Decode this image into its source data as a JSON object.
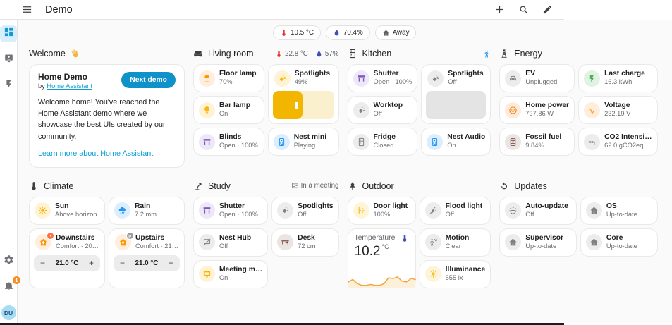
{
  "app": {
    "title": "Demo",
    "menu_icon": "menu",
    "actions": [
      "plus",
      "magnify",
      "pencil"
    ]
  },
  "sidebar": {
    "items": [
      {
        "label": "Dashboards",
        "icon": "view-dashboard",
        "active": true
      },
      {
        "label": "Media",
        "icon": "media",
        "active": false
      },
      {
        "label": "Energy",
        "icon": "flash",
        "active": false
      }
    ],
    "settings_icon": "cog",
    "notifications_icon": "bell",
    "notifications_badge": "1",
    "user": {
      "initials": "DU"
    }
  },
  "chips": [
    {
      "icon": "thermometer",
      "color": "#e53935",
      "label": "10.5 °C"
    },
    {
      "icon": "water",
      "color": "#3f51b5",
      "label": "70.4%"
    },
    {
      "icon": "home",
      "color": "#5f6368",
      "label": "Away"
    }
  ],
  "welcome": {
    "heading": "Welcome",
    "icon": "waving-hand",
    "card": {
      "title": "Home Demo",
      "byline_prefix": "by",
      "byline_link": "Home Assistant",
      "button": "Next demo",
      "body": "Welcome home! You've reached the Home Assistant demo where we showcase the best UIs created by our community.",
      "link": "Learn more about Home Assistant"
    }
  },
  "sections": [
    {
      "title": "Living room",
      "icon": "sofa",
      "extras": [
        {
          "icon": "thermometer",
          "color": "#e53935",
          "text": "22.8 °C"
        },
        {
          "icon": "water",
          "color": "#3f51b5",
          "text": "57%"
        }
      ],
      "cards": [
        {
          "name": "Floor lamp",
          "state": "70%",
          "icon": "floor-lamp",
          "icon_color": "#ff9800",
          "icon_bg": "#ffeedd"
        },
        {
          "name": "Spotlights",
          "state": "49%",
          "icon": "spotlight",
          "icon_color": "#ffb300",
          "icon_bg": "#fff3d6",
          "slider": {
            "value": 49,
            "fill": "#f2b600",
            "track": "#fbf0cd"
          }
        },
        {
          "name": "Bar lamp",
          "state": "On",
          "icon": "bulb",
          "icon_color": "#fdb515",
          "icon_bg": "#fff3d6"
        },
        {
          "name": "Blinds",
          "state": "Open · 100%",
          "icon": "shutter",
          "icon_color": "#7e57c2",
          "icon_bg": "#eee7f8"
        },
        {
          "name": "Nest mini",
          "state": "Playing",
          "icon": "speaker",
          "icon_color": "#2196f3",
          "icon_bg": "#dcedfd"
        }
      ]
    },
    {
      "title": "Kitchen",
      "icon": "fridge",
      "extras": [
        {
          "icon": "run",
          "color": "#2196f3",
          "text": ""
        }
      ],
      "cards": [
        {
          "name": "Shutter",
          "state": "Open · 100%",
          "icon": "shutter",
          "icon_color": "#7e57c2",
          "icon_bg": "#eee7f8"
        },
        {
          "name": "Spotlights",
          "state": "Off",
          "icon": "spotlight",
          "icon_color": "#7f8184",
          "icon_bg": "#ececec",
          "slider": {
            "value": 0,
            "fill": "#e4e4e4",
            "track": "#e4e4e4"
          }
        },
        {
          "name": "Worktop",
          "state": "Off",
          "icon": "spotlight",
          "icon_color": "#7f8184",
          "icon_bg": "#ececec"
        },
        {
          "name": "Fridge",
          "state": "Closed",
          "icon": "fridge",
          "icon_color": "#7f8184",
          "icon_bg": "#ececec"
        },
        {
          "name": "Nest Audio",
          "state": "On",
          "icon": "speaker",
          "icon_color": "#2196f3",
          "icon_bg": "#dcedfd"
        }
      ]
    },
    {
      "title": "Energy",
      "icon": "tower",
      "extras": [],
      "cards": [
        {
          "name": "EV",
          "state": "Unplugged",
          "icon": "car",
          "icon_color": "#7f8184",
          "icon_bg": "#ececec"
        },
        {
          "name": "Last charge",
          "state": "16.3 kWh",
          "icon": "flash",
          "icon_color": "#4caf50",
          "icon_bg": "#e1f1e2"
        },
        {
          "name": "Home power",
          "state": "797.86 W",
          "icon": "power-socket",
          "icon_color": "#f57c00",
          "icon_bg": "#fdeada"
        },
        {
          "name": "Voltage",
          "state": "232.19 V",
          "icon": "sine-wave",
          "icon_color": "#ff9800",
          "icon_bg": "#ffeedd"
        },
        {
          "name": "Fossil fuel",
          "state": "9.84%",
          "icon": "barrel",
          "icon_color": "#795548",
          "icon_bg": "#eae5e3"
        },
        {
          "name": "CO2 Intensi…",
          "state": "62.0 gCO2eq…",
          "icon": "co2",
          "icon_color": "#6d7073",
          "icon_bg": "#ececec"
        }
      ]
    },
    {
      "title": "Climate",
      "icon": "thermometer",
      "extras": [],
      "cards": [
        {
          "name": "Sun",
          "state": "Above horizon",
          "icon": "sun",
          "icon_color": "#ffb300",
          "icon_bg": "#fff3d6"
        },
        {
          "name": "Rain",
          "state": "7.2 mm",
          "icon": "rain",
          "icon_color": "#2196f3",
          "icon_bg": "#dcedfd"
        },
        {
          "name": "Downstairs",
          "state": "Comfort · 20…",
          "icon": "home-arrow",
          "icon_color": "#ff9800",
          "icon_bg": "#ffeedd",
          "badge": "flame",
          "badge_color": "#ff7043",
          "stepper": {
            "minus": "−",
            "value": "21.0 °C",
            "plus": "+"
          }
        },
        {
          "name": "Upstairs",
          "state": "Comfort · 21…",
          "icon": "home-arrow",
          "icon_color": "#ff9800",
          "icon_bg": "#ffeedd",
          "badge": "gear",
          "badge_color": "#9e9e9e",
          "stepper": {
            "minus": "−",
            "value": "21.0 °C",
            "plus": "+"
          }
        }
      ]
    },
    {
      "title": "Study",
      "icon": "desk-lamp",
      "extras": [
        {
          "icon": "meeting",
          "color": "#757575",
          "text": "In a meeting"
        }
      ],
      "cards": [
        {
          "name": "Shutter",
          "state": "Open · 100%",
          "icon": "shutter",
          "icon_color": "#7e57c2",
          "icon_bg": "#eee7f8"
        },
        {
          "name": "Spotlights",
          "state": "Off",
          "icon": "spotlight",
          "icon_color": "#7f8184",
          "icon_bg": "#ececec"
        },
        {
          "name": "Nest Hub",
          "state": "Off",
          "icon": "tablet-off",
          "icon_color": "#7f8184",
          "icon_bg": "#ececec"
        },
        {
          "name": "Desk",
          "state": "72 cm",
          "icon": "desk",
          "icon_color": "#795548",
          "icon_bg": "#eae5e3"
        },
        {
          "name": "Meeting m…",
          "state": "On",
          "icon": "meeting-room",
          "icon_color": "#ffb300",
          "icon_bg": "#fff3d6"
        }
      ]
    },
    {
      "title": "Outdoor",
      "icon": "tree",
      "extras": [],
      "cards": [
        {
          "name": "Door light",
          "state": "100%",
          "icon": "wall-light",
          "icon_color": "#fbc02d",
          "icon_bg": "#fef5d8"
        },
        {
          "name": "Flood light",
          "state": "Off",
          "icon": "flood-light",
          "icon_color": "#7f8184",
          "icon_bg": "#ececec"
        },
        {
          "name": "Temperature",
          "big_value": "10.2",
          "unit": "°C",
          "icon": "thermometer",
          "icon_color": "#3f51b5",
          "sparkline": {
            "color": "#f2a63c",
            "fill": "#fcf0da",
            "points": [
              3,
              4.5,
              2,
              1,
              1,
              1.5,
              1,
              1,
              2,
              5.5,
              5,
              6,
              3.5,
              3,
              5,
              4.5
            ]
          }
        },
        {
          "name": "Motion",
          "state": "Clear",
          "icon": "motion",
          "icon_color": "#7f8184",
          "icon_bg": "#ececec"
        },
        {
          "name": "Illuminance",
          "state": "555 lx",
          "icon": "sun",
          "icon_color": "#fbc02d",
          "icon_bg": "#fef5d8"
        }
      ]
    },
    {
      "title": "Updates",
      "icon": "update",
      "extras": [],
      "cards": [
        {
          "name": "Auto-update",
          "state": "Off",
          "icon": "auto-update",
          "icon_color": "#7f8184",
          "icon_bg": "#ececec"
        },
        {
          "name": "OS",
          "state": "Up-to-date",
          "icon": "ha-logo",
          "icon_color": "#7f8184",
          "icon_bg": "#ececec"
        },
        {
          "name": "Supervisor",
          "state": "Up-to-date",
          "icon": "ha-logo",
          "icon_color": "#7f8184",
          "icon_bg": "#ececec"
        },
        {
          "name": "Core",
          "state": "Up-to-date",
          "icon": "ha-logo",
          "icon_color": "#7f8184",
          "icon_bg": "#ececec"
        }
      ]
    }
  ]
}
